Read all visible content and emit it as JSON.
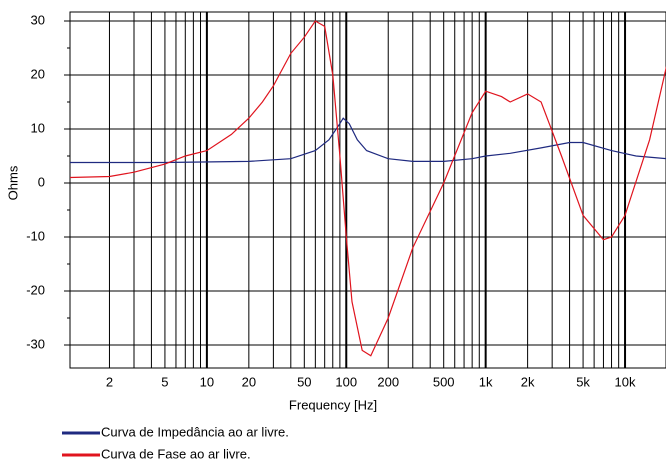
{
  "chart_data": {
    "type": "line",
    "xlabel": "Frequency [Hz]",
    "ylabel": "Ohms",
    "xscale": "log",
    "xlim": [
      1,
      20000
    ],
    "ylim": [
      -34,
      32
    ],
    "xticks": [
      2,
      5,
      10,
      20,
      50,
      100,
      200,
      500,
      {
        "value": 1000,
        "label": "1k"
      },
      {
        "value": 2000,
        "label": "2k"
      },
      {
        "value": 5000,
        "label": "5k"
      },
      {
        "value": 10000,
        "label": "10k"
      }
    ],
    "xgrid": [
      2,
      3,
      4,
      5,
      6,
      7,
      8,
      9,
      10,
      20,
      30,
      40,
      50,
      60,
      70,
      80,
      90,
      100,
      200,
      300,
      400,
      500,
      600,
      700,
      800,
      900,
      1000,
      2000,
      3000,
      4000,
      5000,
      6000,
      7000,
      8000,
      9000,
      10000
    ],
    "yticks": [
      -30,
      -20,
      -10,
      0,
      10,
      20,
      30
    ],
    "grid": true,
    "legend": "bottom-left",
    "series": [
      {
        "name": "Curva de Impedância ao ar livre.",
        "color": "#1f2a80",
        "x": [
          1,
          5,
          20,
          40,
          60,
          75,
          90,
          95,
          105,
          120,
          140,
          200,
          300,
          500,
          800,
          1000,
          1500,
          2500,
          4000,
          5000,
          8000,
          12000,
          20000
        ],
        "values": [
          3.8,
          3.8,
          4,
          4.5,
          6,
          8,
          11,
          12,
          11,
          8,
          6,
          4.5,
          4,
          4,
          4.5,
          5,
          5.5,
          6.5,
          7.5,
          7.5,
          6,
          5,
          4.5
        ]
      },
      {
        "name": "Curva de Fase ao ar livre.",
        "color": "#e0141e",
        "x": [
          1,
          2,
          3,
          5,
          7,
          10,
          15,
          20,
          25,
          30,
          40,
          50,
          60,
          70,
          80,
          90,
          100,
          110,
          130,
          150,
          200,
          300,
          500,
          800,
          1000,
          1300,
          1500,
          2000,
          2500,
          3500,
          5000,
          7000,
          8000,
          10000,
          15000,
          20000
        ],
        "values": [
          1,
          1.2,
          2,
          3.5,
          5,
          6,
          9,
          12,
          15,
          18,
          24,
          27,
          30,
          29,
          20,
          5,
          -10,
          -22,
          -31,
          -32,
          -25,
          -12,
          0,
          13,
          17,
          16,
          15,
          16.5,
          15,
          5,
          -6,
          -10.5,
          -10,
          -6,
          8,
          22
        ]
      }
    ]
  }
}
